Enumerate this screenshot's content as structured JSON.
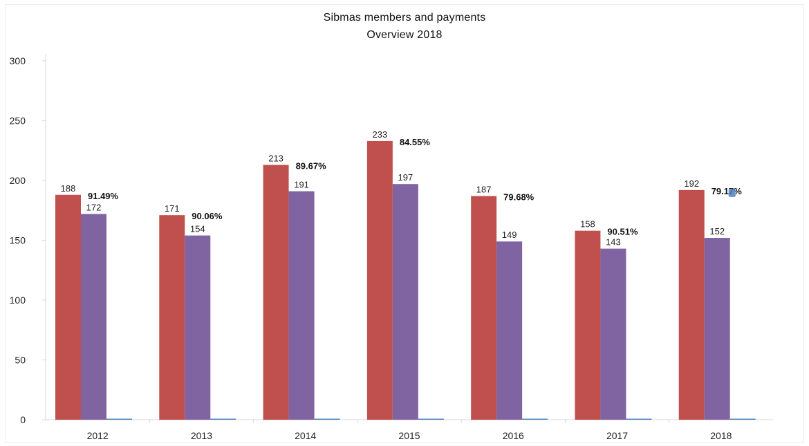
{
  "header": {
    "title": "Sibmas members and payments",
    "subtitle": "Overview 2018"
  },
  "colors": {
    "members": "#c0504d",
    "payments": "#8064a2",
    "percent_marker": "#4f81bd",
    "axis": "#d9d9d9"
  },
  "chart_data": {
    "type": "bar",
    "title": "Sibmas members and payments",
    "subtitle": "Overview 2018",
    "xlabel": "",
    "ylabel": "",
    "ylim": [
      0,
      300
    ],
    "yticks": [
      0,
      50,
      100,
      150,
      200,
      250,
      300
    ],
    "grid": false,
    "legend": "none",
    "categories": [
      "2012",
      "2013",
      "2014",
      "2015",
      "2016",
      "2017",
      "2018"
    ],
    "series": [
      {
        "values": [
          188,
          171,
          213,
          233,
          187,
          158,
          192
        ],
        "labels": [
          "188",
          "171",
          "213",
          "233",
          "187",
          "158",
          "192"
        ]
      },
      {
        "values": [
          172,
          154,
          191,
          197,
          149,
          143,
          152
        ],
        "labels": [
          "172",
          "154",
          "191",
          "197",
          "149",
          "143",
          "152"
        ]
      },
      {
        "values": [
          0.9149,
          0.9006,
          0.8967,
          0.8455,
          0.7968,
          0.9051,
          0.7917
        ],
        "labels": [
          "91.49%",
          "90.06%",
          "89.67%",
          "84.55%",
          "79.68%",
          "90.51%",
          "79.17%"
        ]
      }
    ]
  }
}
